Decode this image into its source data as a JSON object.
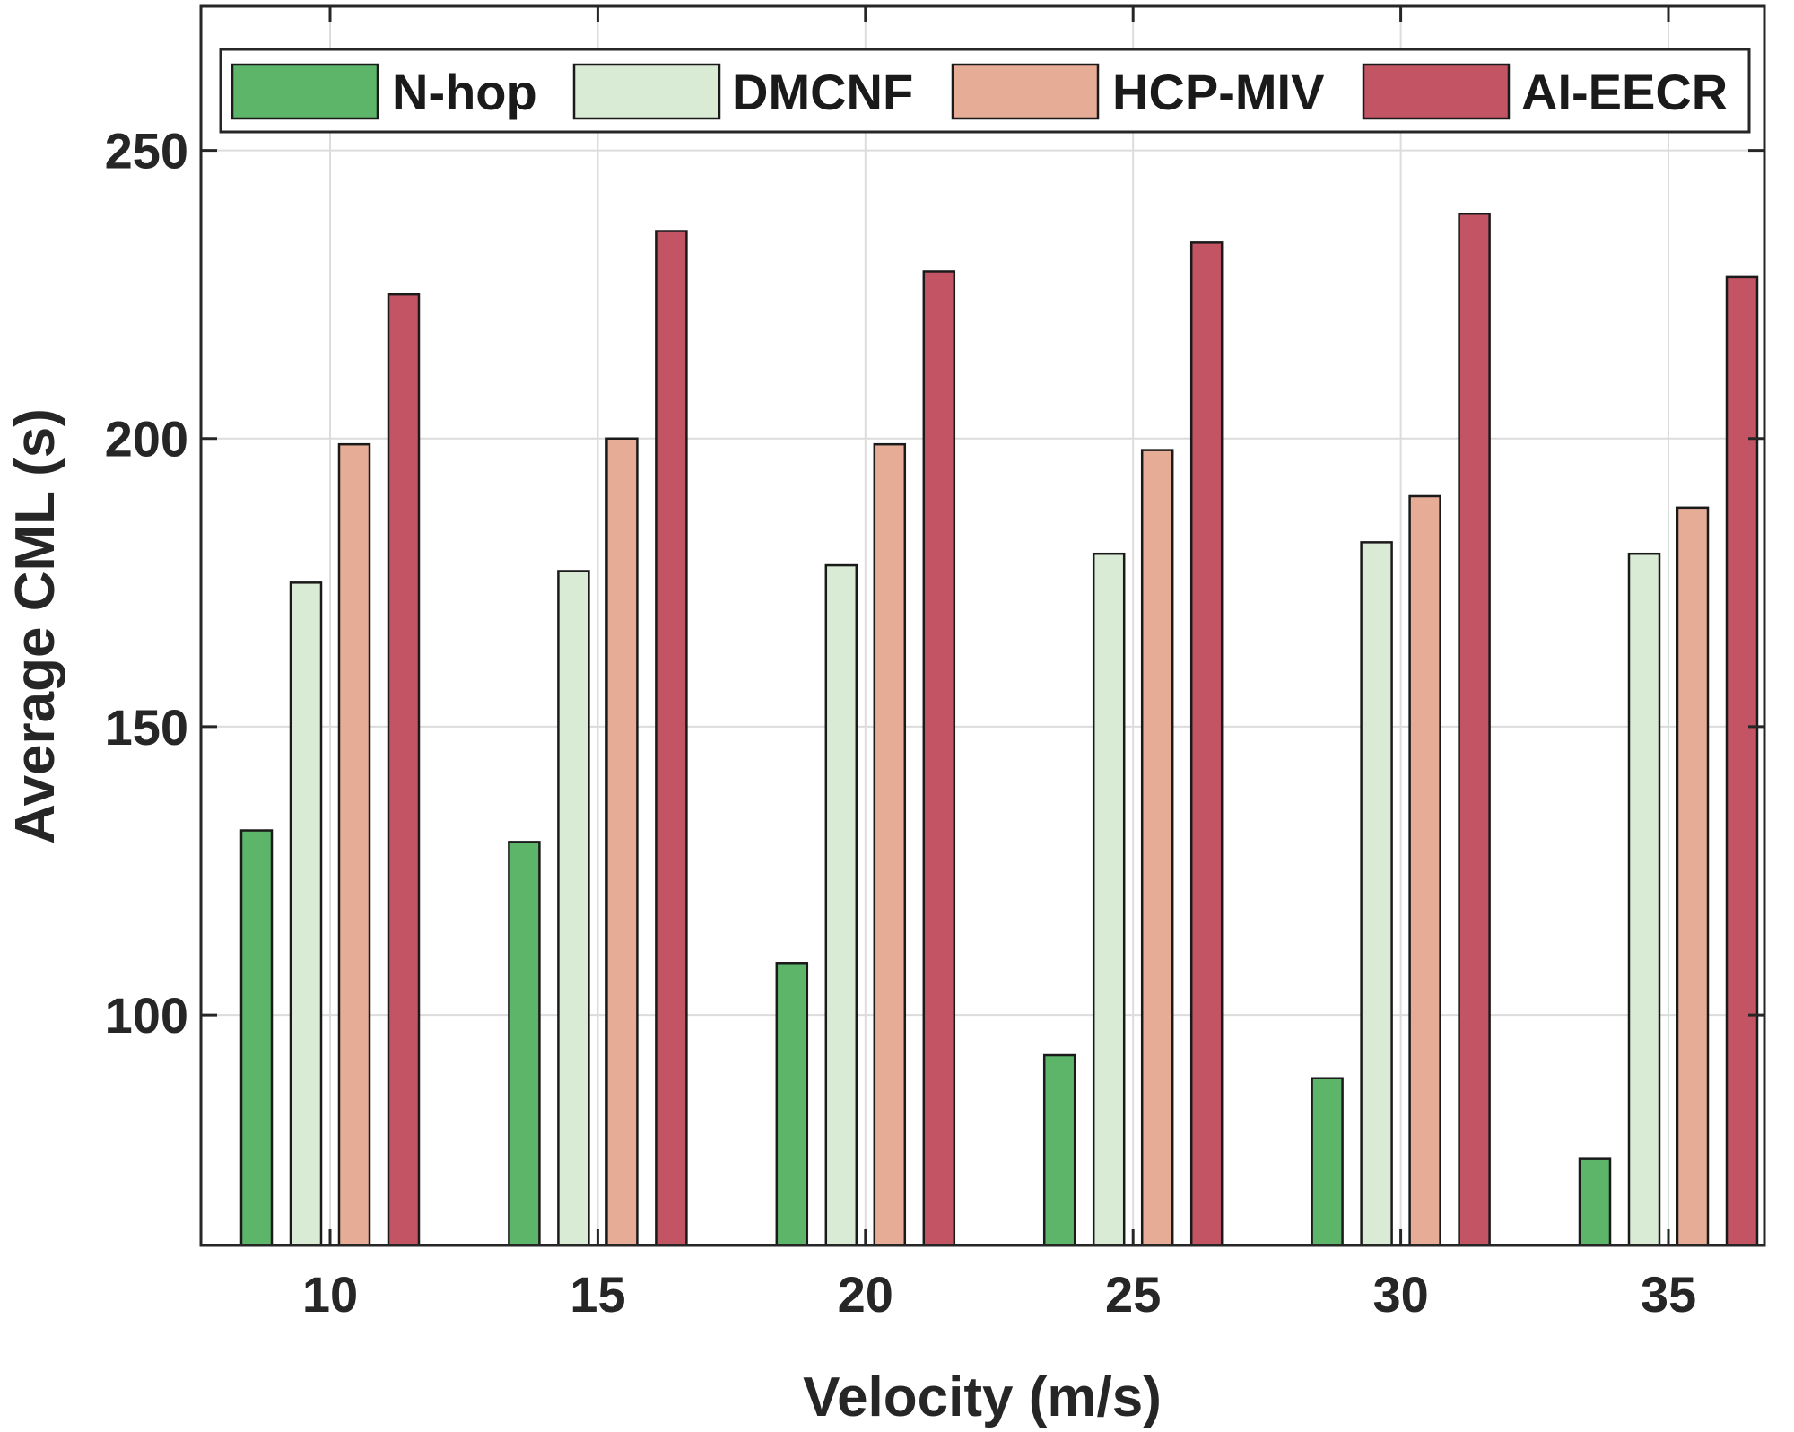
{
  "chart_data": {
    "type": "bar",
    "xlabel": "Velocity (m/s)",
    "ylabel": "Average CML (s)",
    "categories": [
      "10",
      "15",
      "20",
      "25",
      "30",
      "35"
    ],
    "ylim": [
      60,
      275
    ],
    "yticks": [
      100,
      150,
      200,
      250
    ],
    "grid": true,
    "legend_position": "top",
    "series": [
      {
        "name": "N-hop",
        "color": "#5db56a",
        "values": [
          132,
          130,
          109,
          93,
          89,
          75
        ]
      },
      {
        "name": "DMCNF",
        "color": "#d9ebd4",
        "values": [
          175,
          177,
          178,
          180,
          182,
          180
        ]
      },
      {
        "name": "HCP-MIV",
        "color": "#e6ac95",
        "values": [
          199,
          200,
          199,
          198,
          190,
          188
        ]
      },
      {
        "name": "AI-EECR",
        "color": "#c25464",
        "values": [
          225,
          236,
          229,
          234,
          239,
          228
        ]
      }
    ]
  }
}
